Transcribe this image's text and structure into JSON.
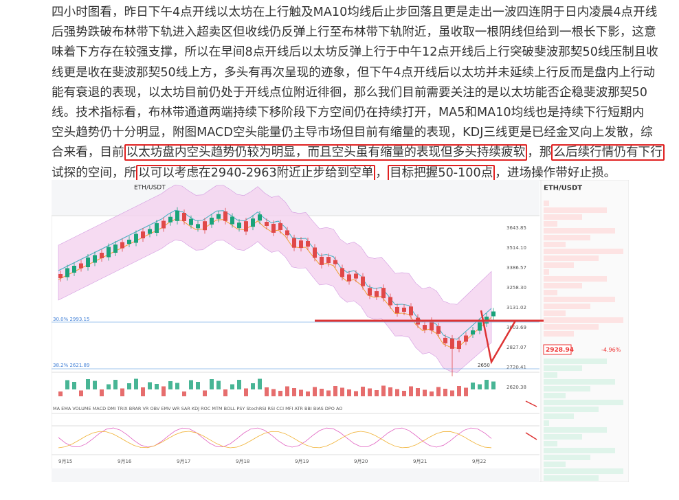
{
  "article": {
    "lines": [
      [
        {
          "text": "四小时图看，昨日下午4点开线以太坊在上行触及MA10均线后止步回落且更是走出一波四连阴于日内凌晨4点开线"
        }
      ],
      [
        {
          "text": "后强势跌破布林带下轨进入超卖区但收线仍反弹上行至布林带下轨附近，虽收取一根阴线但给到一根长下影，这意"
        }
      ],
      [
        {
          "text": "味着下方存在较强支撑，所以在早间8点开线后以太坊反弹上行于中午12点开线后上行突破斐波那契50线压制且收"
        }
      ],
      [
        {
          "text": "线更是收在斐波那契50线上方，多头有再次呈现的迹象，但下午4点开线后以太坊并未延续上行反而是盘内上行动"
        }
      ],
      [
        {
          "text": "能有衰退的表现，以太坊目前仍处于开线点位附近徘徊，那么我们目前需要关注的是以太坊能否企稳斐波那契50"
        }
      ],
      [
        {
          "text": "线。技术指标看，布林带通道两端持续下移阶段下方空间仍在持续打开，MA5和MA10均线也是持续下行短期内"
        }
      ],
      [
        {
          "text": "空头趋势仍十分明显，附图MACD空头能量仍主导市场但目前有缩量的表现，KDJ三线更是已经金叉向上发散，综"
        }
      ],
      [
        {
          "text": "合来看，目前"
        },
        {
          "text": "以太坊盘内空头趋势仍较为明显，而且空头虽有缩量的表现但多头持续疲软",
          "boxed": true
        },
        {
          "text": "，那"
        },
        {
          "text": "么后续行情仍有下行",
          "boxed": true
        }
      ],
      [
        {
          "text": "试探的空间，所"
        },
        {
          "text": "以可以考虑在2940-2963附近止步给到空单",
          "boxed": true
        },
        {
          "text": "，"
        },
        {
          "text": "目标把握50-100点",
          "boxed": true
        },
        {
          "text": "，进场操作带好止损。"
        }
      ]
    ]
  },
  "chart": {
    "pair": "ETH/USDT",
    "price": "2928.94",
    "change": "-4.96%",
    "low": "2650",
    "price_axis": [
      "3643.85",
      "3514.10",
      "3386.57",
      "3258.30",
      "3131.02",
      "3003.69",
      "2827.07",
      "2720.41",
      "2620.38"
    ],
    "fib_top": "30.0% 2993.15",
    "fib_bottom": "38.2% 2621.89",
    "dates": [
      "9月15",
      "9月16",
      "9月17",
      "9月18",
      "9月19",
      "9月20",
      "9月21",
      "9月22"
    ],
    "indicators": "MA EMA VOLUME MACD DMI TRIX BRAR VR OBV EMV WR SAR KDJ ROC MTM BOLL PSY StochRSI RSI CCI MFI ATR BBI BIAS DPO AO"
  }
}
